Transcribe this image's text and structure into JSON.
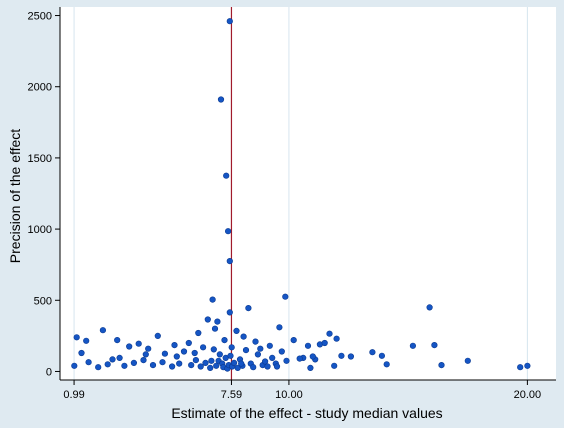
{
  "chart_data": {
    "type": "scatter",
    "title": "",
    "xlabel": "Estimate of the effect - study median values",
    "ylabel": "Precision of the effect",
    "xlim": [
      0.4,
      21.2
    ],
    "ylim": [
      -60,
      2560
    ],
    "xticks": [
      "0.99",
      "7.59",
      "10.00",
      "20.00"
    ],
    "xtick_values": [
      0.99,
      7.59,
      10.0,
      20.0
    ],
    "highlight_tick": "7.59",
    "yticks": [
      "0",
      "500",
      "1000",
      "1500",
      "2000",
      "2500"
    ],
    "ytick_values": [
      0,
      500,
      1000,
      1500,
      2000,
      2500
    ],
    "vlines": [
      {
        "x": 0.99,
        "style": "grid"
      },
      {
        "x": 10.0,
        "style": "grid"
      },
      {
        "x": 20.0,
        "style": "grid"
      },
      {
        "x": 7.59,
        "style": "reference"
      }
    ],
    "grid": false,
    "legend": "none",
    "series": [
      {
        "values": [
          [
            7.52,
            2460
          ],
          [
            7.15,
            1910
          ],
          [
            7.37,
            1375
          ],
          [
            7.45,
            985
          ],
          [
            7.52,
            775
          ],
          [
            9.85,
            525
          ],
          [
            6.8,
            505
          ],
          [
            7.52,
            415
          ],
          [
            8.3,
            445
          ],
          [
            15.9,
            450
          ],
          [
            6.6,
            365
          ],
          [
            7.0,
            350
          ],
          [
            1.1,
            240
          ],
          [
            1.5,
            215
          ],
          [
            2.2,
            290
          ],
          [
            2.8,
            220
          ],
          [
            3.7,
            195
          ],
          [
            4.1,
            160
          ],
          [
            4.5,
            250
          ],
          [
            5.2,
            185
          ],
          [
            5.8,
            200
          ],
          [
            6.2,
            270
          ],
          [
            6.9,
            300
          ],
          [
            7.3,
            220
          ],
          [
            7.8,
            285
          ],
          [
            8.1,
            245
          ],
          [
            8.6,
            210
          ],
          [
            9.2,
            180
          ],
          [
            9.6,
            310
          ],
          [
            10.2,
            220
          ],
          [
            10.6,
            95
          ],
          [
            11.3,
            190
          ],
          [
            11.7,
            265
          ],
          [
            12.2,
            110
          ],
          [
            13.5,
            135
          ],
          [
            14.1,
            50
          ],
          [
            16.1,
            185
          ],
          [
            17.5,
            75
          ],
          [
            19.7,
            30
          ],
          [
            20.0,
            40
          ],
          [
            1.0,
            40
          ],
          [
            1.3,
            130
          ],
          [
            1.6,
            65
          ],
          [
            2.4,
            50
          ],
          [
            2.9,
            95
          ],
          [
            3.1,
            40
          ],
          [
            3.5,
            60
          ],
          [
            3.9,
            80
          ],
          [
            4.3,
            45
          ],
          [
            4.8,
            125
          ],
          [
            5.1,
            35
          ],
          [
            5.4,
            55
          ],
          [
            5.6,
            140
          ],
          [
            5.9,
            45
          ],
          [
            6.1,
            80
          ],
          [
            6.3,
            35
          ],
          [
            6.5,
            60
          ],
          [
            6.7,
            25
          ],
          [
            6.85,
            155
          ],
          [
            6.95,
            40
          ],
          [
            7.05,
            75
          ],
          [
            7.1,
            120
          ],
          [
            7.2,
            55
          ],
          [
            7.25,
            30
          ],
          [
            7.35,
            95
          ],
          [
            7.42,
            20
          ],
          [
            7.48,
            45
          ],
          [
            7.55,
            110
          ],
          [
            7.62,
            35
          ],
          [
            7.7,
            60
          ],
          [
            7.85,
            25
          ],
          [
            7.95,
            85
          ],
          [
            8.05,
            40
          ],
          [
            8.2,
            150
          ],
          [
            8.4,
            55
          ],
          [
            8.5,
            30
          ],
          [
            8.7,
            120
          ],
          [
            8.9,
            45
          ],
          [
            9.0,
            70
          ],
          [
            9.1,
            35
          ],
          [
            9.3,
            95
          ],
          [
            9.45,
            55
          ],
          [
            9.7,
            140
          ],
          [
            9.9,
            75
          ],
          [
            10.45,
            90
          ],
          [
            10.9,
            25
          ],
          [
            11.1,
            85
          ],
          [
            11.5,
            200
          ],
          [
            11.9,
            40
          ],
          [
            12.6,
            105
          ],
          [
            13.9,
            110
          ],
          [
            15.2,
            180
          ],
          [
            16.4,
            45
          ],
          [
            2.0,
            30
          ],
          [
            2.6,
            85
          ],
          [
            3.3,
            175
          ],
          [
            4.0,
            120
          ],
          [
            4.7,
            65
          ],
          [
            5.3,
            105
          ],
          [
            6.05,
            130
          ],
          [
            6.4,
            170
          ],
          [
            6.75,
            75
          ],
          [
            7.6,
            170
          ],
          [
            8.0,
            55
          ],
          [
            8.8,
            160
          ],
          [
            9.5,
            35
          ],
          [
            10.8,
            180
          ],
          [
            12.0,
            230
          ],
          [
            11.0,
            105
          ]
        ]
      }
    ],
    "colors": {
      "points": "#1555c4",
      "points_edge": "#0b3a91",
      "reference_line": "#a01b2b",
      "highlight_tick": "#d22020",
      "grid": "#d6e5ee",
      "plot_bg": "#ffffff",
      "outer_bg": "#dfeaf1"
    }
  }
}
